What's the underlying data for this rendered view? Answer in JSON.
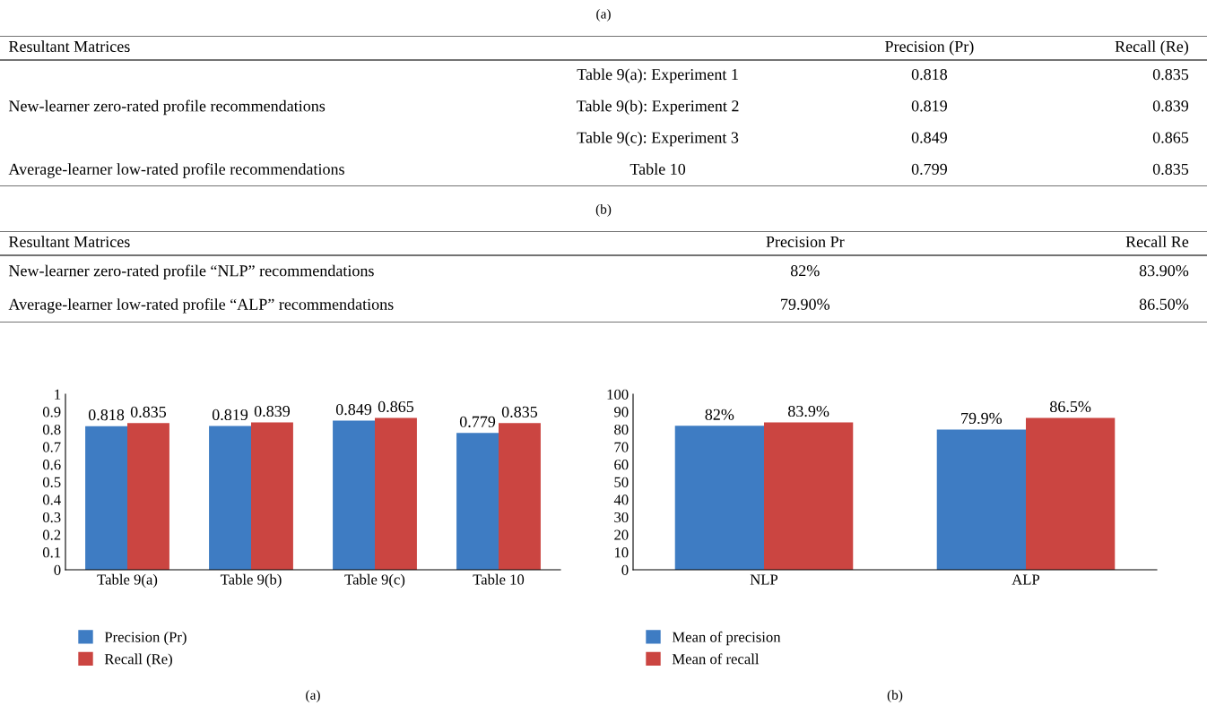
{
  "chart_data": [
    {
      "type": "other",
      "title": "(a)",
      "categories": [
        "Resultant Matrices",
        null,
        "Precision (Pr)",
        "Recall (Re)"
      ],
      "cell_labels": [
        [
          null,
          "Table 9(a): Experiment 1",
          "0.818",
          "0.835"
        ],
        [
          "New-learner zero-rated profile recommendations",
          "Table 9(b): Experiment 2",
          "0.819",
          "0.839"
        ],
        [
          null,
          "Table 9(c): Experiment 3",
          "0.849",
          "0.865"
        ],
        [
          "Average-learner low-rated profile recommendations",
          "Table 10",
          "0.799",
          "0.835"
        ]
      ]
    },
    {
      "type": "other",
      "title": "(b)",
      "categories": [
        "Resultant Matrices",
        "Precision Pr",
        "Recall Re"
      ],
      "cell_labels": [
        [
          "New-learner zero-rated profile “NLP” recommendations",
          "82%",
          "83.90%"
        ],
        [
          "Average-learner low-rated profile “ALP” recommendations",
          "79.90%",
          "86.50%"
        ]
      ]
    },
    {
      "type": "bar",
      "categories": [
        "Table 9(a)",
        "Table 9(b)",
        "Table 9(c)",
        "Table 10"
      ],
      "series": [
        {
          "name": "Precision (Pr)",
          "color": "#3e7cc3",
          "values": [
            0.818,
            0.819,
            0.849,
            0.779
          ]
        },
        {
          "name": "Recall (Re)",
          "color": "#cb4541",
          "values": [
            0.835,
            0.839,
            0.865,
            0.835
          ]
        }
      ],
      "ylim": [
        0,
        1
      ],
      "yticks": [
        0,
        0.1,
        0.2,
        0.3,
        0.4,
        0.5,
        0.6,
        0.7,
        0.8,
        0.9,
        1
      ],
      "data_labels": true,
      "legend": "bottom left",
      "annotations": [
        "(a)"
      ]
    },
    {
      "type": "bar",
      "categories": [
        "NLP",
        "ALP"
      ],
      "series": [
        {
          "name": "Mean of precision",
          "color": "#3e7cc3",
          "values": [
            82,
            79.9
          ],
          "value_labels": [
            "82%",
            "79.9%"
          ]
        },
        {
          "name": "Mean of recall",
          "color": "#cb4541",
          "values": [
            83.9,
            86.5
          ],
          "value_labels": [
            "83.9%",
            "86.5%"
          ]
        }
      ],
      "ylim": [
        0,
        100
      ],
      "yticks": [
        0,
        10,
        20,
        30,
        40,
        50,
        60,
        70,
        80,
        90,
        100
      ],
      "legend": "bottom left",
      "annotations": [
        "(b)"
      ]
    }
  ]
}
